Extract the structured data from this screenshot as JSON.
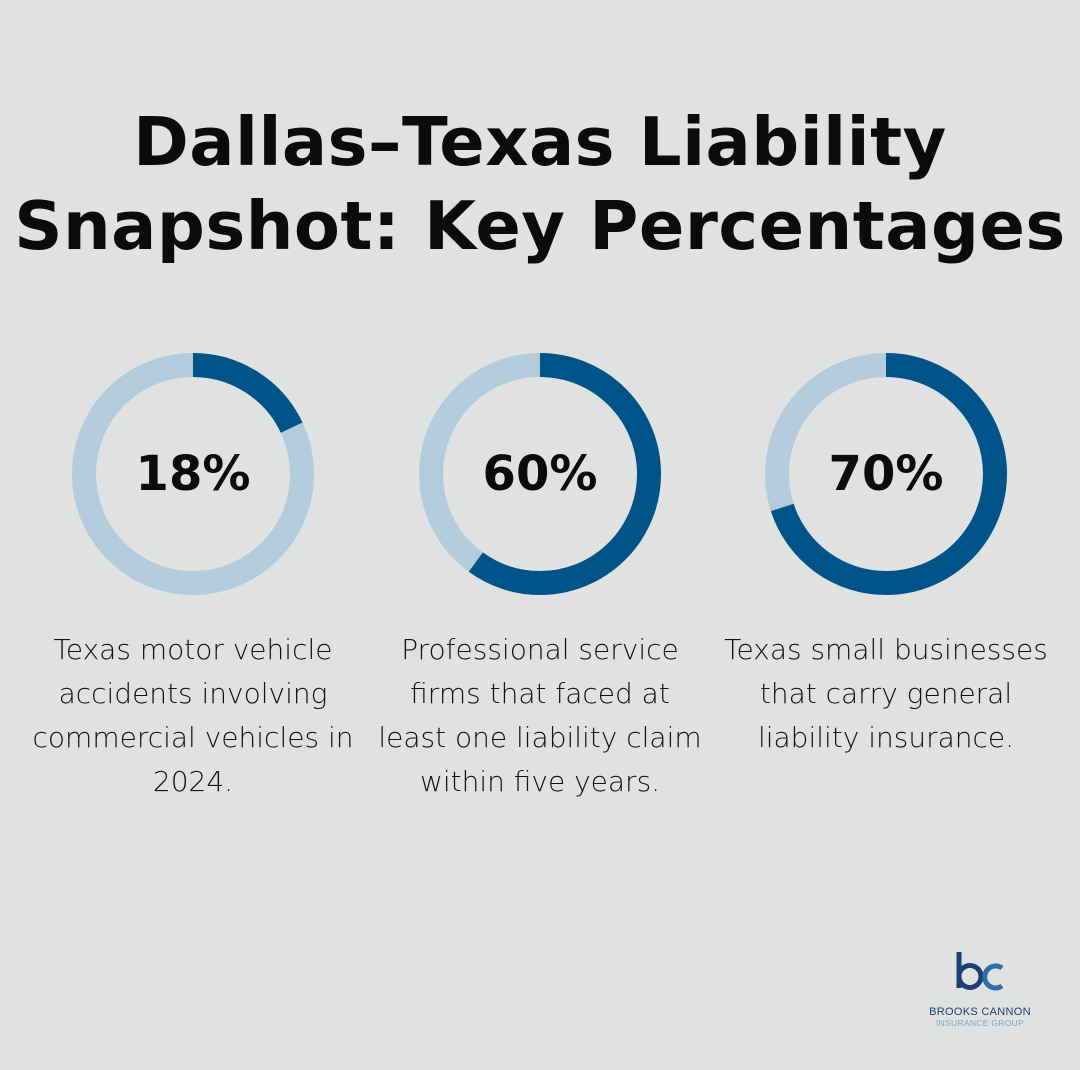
{
  "title_line1": "Dallas–Texas Liability",
  "title_line2": "Snapshot: Key Percentages",
  "colors": {
    "background": "#e0e2e1",
    "filled": "#01548a",
    "remaining": "#b3ccdc"
  },
  "chart_data": [
    {
      "type": "pie",
      "style": "donut",
      "value": 18,
      "max": 100,
      "label": "18%",
      "description": "Texas motor vehicle accidents involving commercial vehicles in 2024."
    },
    {
      "type": "pie",
      "style": "donut",
      "value": 60,
      "max": 100,
      "label": "60%",
      "description": "Professional service firms that faced at least one liability claim within five years."
    },
    {
      "type": "pie",
      "style": "donut",
      "value": 70,
      "max": 100,
      "label": "70%",
      "description": "Texas small businesses that carry general liability insurance."
    }
  ],
  "logo": {
    "mark": "bc",
    "line1": "BROOKS CANNON",
    "line2": "INSURANCE GROUP"
  }
}
